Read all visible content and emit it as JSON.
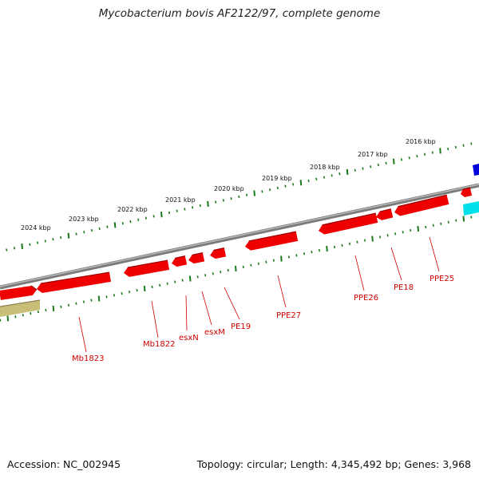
{
  "title": "Mycobacterium bovis AF2122/97, complete genome",
  "footer": {
    "accession": "Accession: NC_002945",
    "summary": "Topology: circular; Length: 4,345,492 bp; Genes: 3,968"
  },
  "colors": {
    "backbone": "#8a8a8a",
    "gene_red": "#ee0000",
    "gene_cyan": "#00e0e8",
    "gene_blue": "#0000dd",
    "gene_olive": "#c8be78",
    "tick_green": "#1a7a1a",
    "label_red": "#cc0000"
  },
  "kbp_labels": [
    "2024 kbp",
    "2023 kbp",
    "2022 kbp",
    "2021 kbp",
    "2020 kbp",
    "2019 kbp",
    "2018 kbp",
    "2017 kbp",
    "2016 kbp"
  ],
  "gene_labels": [
    "Mb1823",
    "Mb1822",
    "esxN",
    "esxM",
    "PE19",
    "PPE27",
    "PPE26",
    "PE18",
    "PPE25"
  ]
}
